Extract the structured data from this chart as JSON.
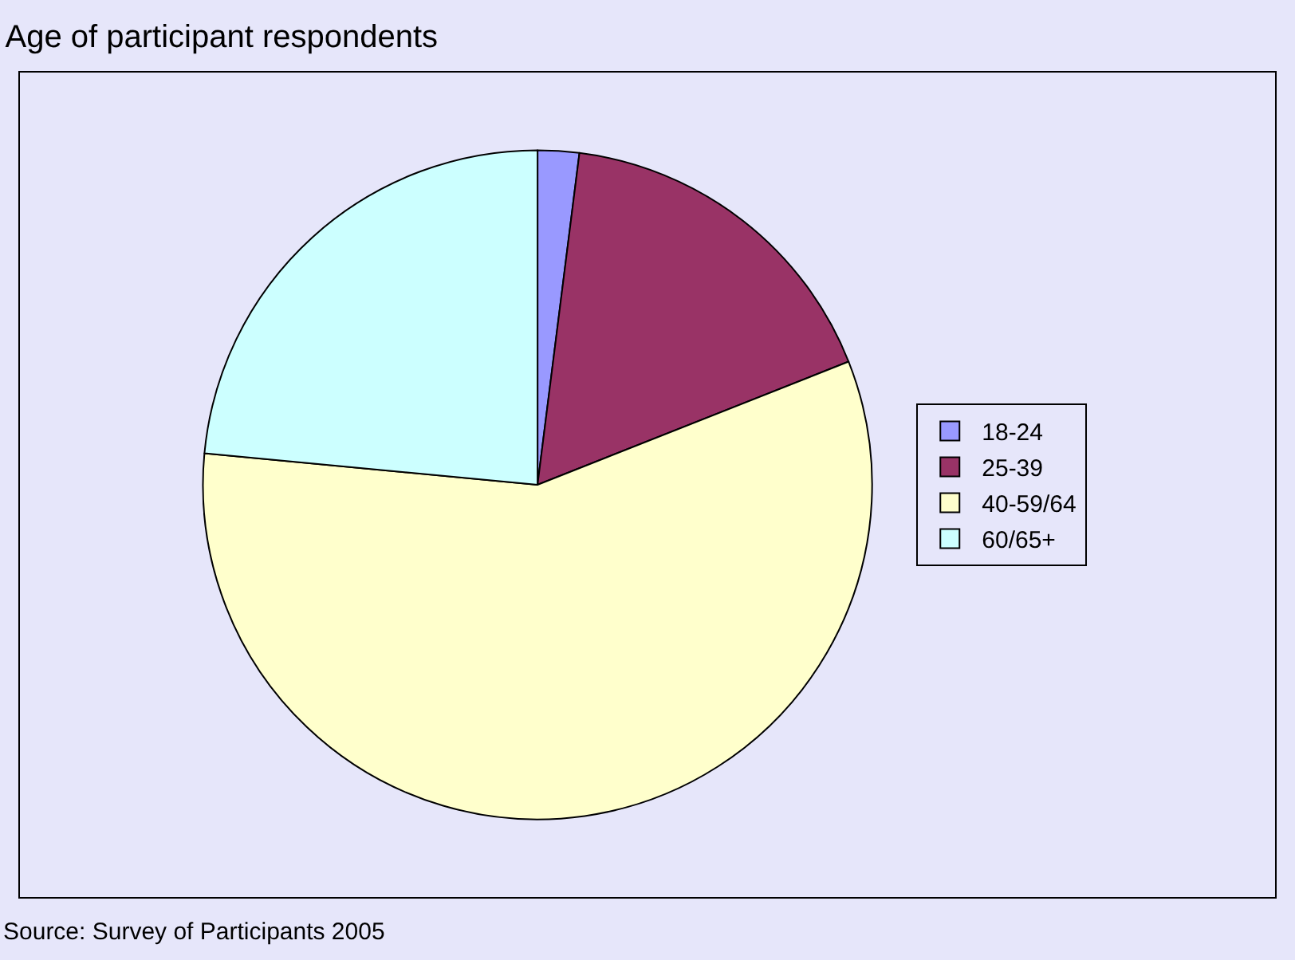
{
  "chart_data": {
    "type": "pie",
    "title": "Age of participant respondents",
    "categories": [
      "18-24",
      "25-39",
      "40-59/64",
      "60/65+"
    ],
    "values": [
      2,
      17,
      57.5,
      23.5
    ],
    "colors": [
      "#9999ff",
      "#993366",
      "#ffffcc",
      "#ccffff"
    ],
    "legend": "right",
    "annotations": [
      "Source: Survey of Participants 2005"
    ]
  }
}
